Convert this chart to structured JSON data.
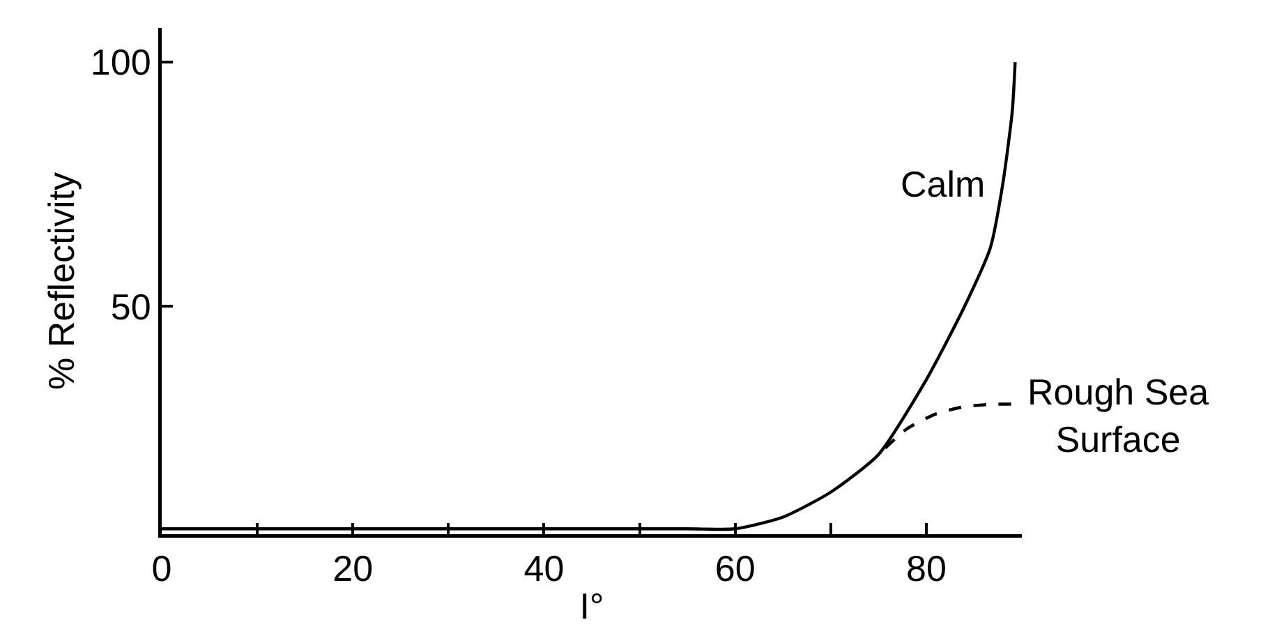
{
  "chart_data": {
    "type": "line",
    "xlabel": "I°",
    "ylabel": "% Reflectivity",
    "xlim": [
      0,
      90
    ],
    "ylim": [
      3.4,
      107
    ],
    "xticks": [
      0,
      {
        "value": 10,
        "label": null
      },
      20,
      {
        "value": 30,
        "label": null
      },
      40,
      {
        "value": 50,
        "label": null
      },
      60,
      {
        "value": 70,
        "label": null
      },
      80
    ],
    "yticks": [
      50,
      100
    ],
    "grid": false,
    "legend": false,
    "marker": "none",
    "series": [
      {
        "name": "Calm",
        "color": "#000000",
        "line_style": "solid",
        "x": [
          0,
          30,
          55,
          60,
          65,
          70,
          75,
          80,
          84,
          86.7,
          88,
          89,
          89.3
        ],
        "values": [
          4.5,
          4.5,
          4.5,
          4.5,
          6.9,
          12,
          19.7,
          35,
          50,
          62,
          75,
          90,
          100
        ]
      },
      {
        "name": "Rough Sea Surface",
        "color": "#000000",
        "line_style": "dashed",
        "x": [
          75.7,
          78,
          81,
          84,
          87,
          90
        ],
        "values": [
          21,
          25,
          28,
          29.5,
          30,
          30
        ]
      }
    ]
  }
}
